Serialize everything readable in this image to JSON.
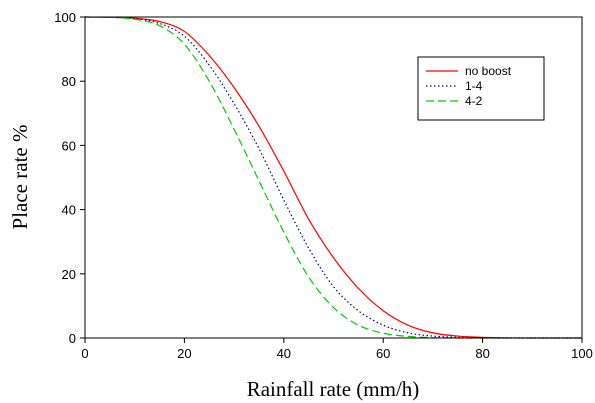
{
  "chart_data": {
    "type": "line",
    "title": "",
    "xlabel": "Rainfall rate (mm/h)",
    "ylabel": "Place rate %",
    "xlim": [
      0,
      100
    ],
    "ylim": [
      0,
      100
    ],
    "x_ticks": [
      0,
      20,
      40,
      60,
      80,
      100
    ],
    "y_ticks": [
      0,
      20,
      40,
      60,
      80,
      100
    ],
    "legend_position": "top-right",
    "grid": false,
    "x": [
      0,
      5,
      10,
      15,
      20,
      25,
      30,
      35,
      40,
      45,
      50,
      55,
      60,
      65,
      70,
      75,
      80,
      85,
      90,
      95,
      100
    ],
    "series": [
      {
        "name": "no boost",
        "color": "#ff0000",
        "dash": "solid",
        "values": [
          100,
          99.9,
          99.6,
          98.6,
          95.5,
          88.0,
          78.0,
          66.0,
          52.0,
          37.0,
          25.0,
          15.5,
          8.5,
          4.0,
          1.6,
          0.6,
          0.2,
          0.05,
          0,
          0,
          0
        ]
      },
      {
        "name": "1-4",
        "color": "#000080",
        "dash": "dotted",
        "values": [
          100,
          99.9,
          99.5,
          98.0,
          94.0,
          85.0,
          73.0,
          59.0,
          43.0,
          28.0,
          16.0,
          8.5,
          4.0,
          1.6,
          0.6,
          0.2,
          0.05,
          0,
          0,
          0,
          0
        ]
      },
      {
        "name": "4-2",
        "color": "#00cc00",
        "dash": "dashed",
        "values": [
          100,
          99.9,
          99.3,
          97.3,
          91.5,
          80.0,
          65.0,
          49.0,
          33.0,
          19.0,
          9.5,
          4.0,
          1.5,
          0.5,
          0.1,
          0,
          0,
          0,
          0,
          0,
          0
        ]
      }
    ]
  }
}
